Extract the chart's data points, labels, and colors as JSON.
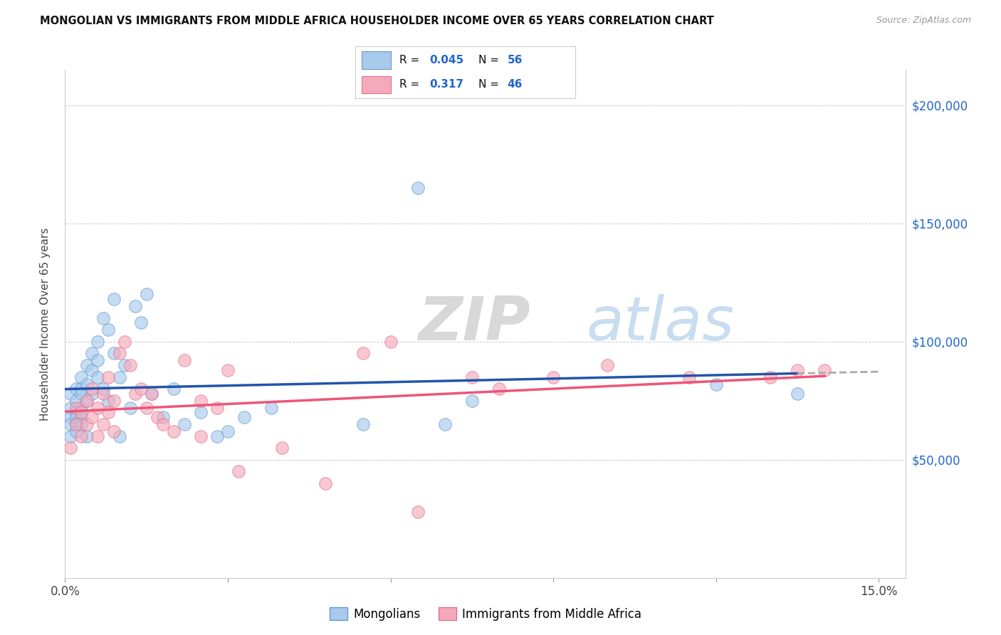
{
  "title": "MONGOLIAN VS IMMIGRANTS FROM MIDDLE AFRICA HOUSEHOLDER INCOME OVER 65 YEARS CORRELATION CHART",
  "source": "Source: ZipAtlas.com",
  "ylabel": "Householder Income Over 65 years",
  "xlim": [
    0.0,
    0.155
  ],
  "ylim": [
    0,
    215000
  ],
  "xticks": [
    0.0,
    0.03,
    0.06,
    0.09,
    0.12,
    0.15
  ],
  "xticklabels": [
    "0.0%",
    "",
    "",
    "",
    "",
    "15.0%"
  ],
  "yticks_right": [
    50000,
    100000,
    150000,
    200000
  ],
  "ytick_labels_right": [
    "$50,000",
    "$100,000",
    "$150,000",
    "$200,000"
  ],
  "grid_color": "#cccccc",
  "background": "#ffffff",
  "mongolian_color": "#A8CAEC",
  "mongolian_edge": "#6699CC",
  "immigrant_color": "#F5AABB",
  "immigrant_edge": "#E07090",
  "legend_label1": "Mongolians",
  "legend_label2": "Immigrants from Middle Africa",
  "blue_line_color": "#2255AA",
  "pink_line_color": "#EE5577",
  "dashed_line_color": "#aaaaaa",
  "mongolian_x": [
    0.001,
    0.001,
    0.001,
    0.001,
    0.001,
    0.002,
    0.002,
    0.002,
    0.002,
    0.002,
    0.002,
    0.003,
    0.003,
    0.003,
    0.003,
    0.003,
    0.003,
    0.004,
    0.004,
    0.004,
    0.004,
    0.005,
    0.005,
    0.005,
    0.006,
    0.006,
    0.006,
    0.007,
    0.007,
    0.008,
    0.008,
    0.009,
    0.009,
    0.01,
    0.01,
    0.011,
    0.012,
    0.013,
    0.014,
    0.015,
    0.016,
    0.018,
    0.02,
    0.022,
    0.025,
    0.028,
    0.03,
    0.033,
    0.038,
    0.055,
    0.065,
    0.07,
    0.075,
    0.12,
    0.135
  ],
  "mongolian_y": [
    72000,
    78000,
    68000,
    65000,
    60000,
    80000,
    75000,
    70000,
    68000,
    65000,
    62000,
    85000,
    80000,
    78000,
    72000,
    68000,
    65000,
    90000,
    82000,
    75000,
    60000,
    95000,
    88000,
    78000,
    100000,
    92000,
    85000,
    110000,
    80000,
    105000,
    75000,
    118000,
    95000,
    85000,
    60000,
    90000,
    72000,
    115000,
    108000,
    120000,
    78000,
    68000,
    80000,
    65000,
    70000,
    60000,
    62000,
    68000,
    72000,
    65000,
    165000,
    65000,
    75000,
    82000,
    78000
  ],
  "immigrant_x": [
    0.001,
    0.002,
    0.002,
    0.003,
    0.003,
    0.004,
    0.004,
    0.005,
    0.005,
    0.006,
    0.006,
    0.007,
    0.007,
    0.008,
    0.008,
    0.009,
    0.009,
    0.01,
    0.011,
    0.012,
    0.013,
    0.014,
    0.015,
    0.016,
    0.017,
    0.018,
    0.02,
    0.022,
    0.025,
    0.025,
    0.028,
    0.03,
    0.032,
    0.04,
    0.048,
    0.055,
    0.06,
    0.065,
    0.075,
    0.08,
    0.09,
    0.1,
    0.115,
    0.13,
    0.135,
    0.14
  ],
  "immigrant_y": [
    55000,
    65000,
    72000,
    60000,
    70000,
    75000,
    65000,
    80000,
    68000,
    72000,
    60000,
    78000,
    65000,
    85000,
    70000,
    75000,
    62000,
    95000,
    100000,
    90000,
    78000,
    80000,
    72000,
    78000,
    68000,
    65000,
    62000,
    92000,
    75000,
    60000,
    72000,
    88000,
    45000,
    55000,
    40000,
    95000,
    100000,
    28000,
    85000,
    80000,
    85000,
    90000,
    85000,
    85000,
    88000,
    88000
  ],
  "watermark_zip": "ZIP",
  "watermark_atlas": "atlas",
  "title_fontsize": 10.5,
  "source_fontsize": 9,
  "tick_fontsize": 12,
  "ylabel_fontsize": 11
}
